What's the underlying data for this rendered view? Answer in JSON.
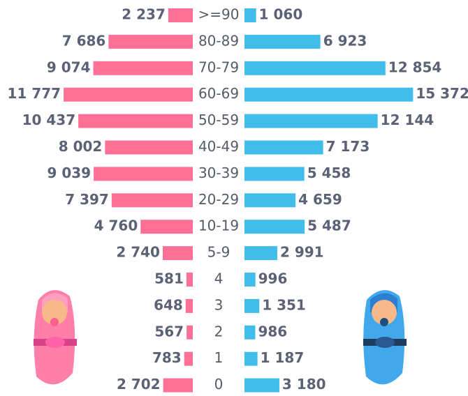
{
  "chart_data": {
    "type": "pyramid",
    "categories": [
      ">=90",
      "80-89",
      "70-79",
      "60-69",
      "50-59",
      "40-49",
      "30-39",
      "20-29",
      "10-19",
      "5-9",
      "4",
      "3",
      "2",
      "1",
      "0"
    ],
    "series": [
      {
        "color": "#ff7097",
        "side": "left",
        "values": [
          2237,
          7686,
          9074,
          11777,
          10437,
          8002,
          9039,
          7397,
          4760,
          2740,
          581,
          648,
          567,
          783,
          2702
        ],
        "value_labels": [
          "2 237",
          "7 686",
          "9 074",
          "11 777",
          "10 437",
          "8 002",
          "9 039",
          "7 397",
          "4 760",
          "2 740",
          "581",
          "648",
          "567",
          "783",
          "2 702"
        ]
      },
      {
        "color": "#41bdec",
        "side": "right",
        "values": [
          1060,
          6923,
          12854,
          15372,
          12144,
          7173,
          5458,
          4659,
          5487,
          2991,
          996,
          1351,
          986,
          1187,
          3180
        ],
        "value_labels": [
          "1 060",
          "6 923",
          "12 854",
          "15 372",
          "12 144",
          "7 173",
          "5 458",
          "4 659",
          "5 487",
          "2 991",
          "996",
          "1 351",
          "986",
          "1 187",
          "3 180"
        ]
      }
    ]
  }
}
